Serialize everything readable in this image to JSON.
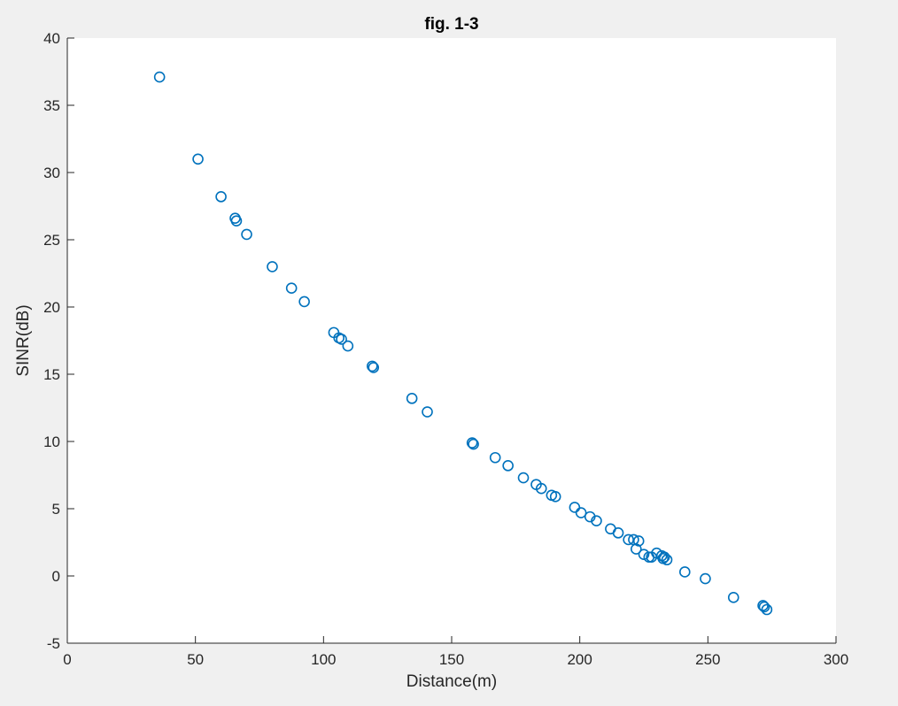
{
  "chart_data": {
    "type": "scatter",
    "title": "fig. 1-3",
    "xlabel": "Distance(m)",
    "ylabel": "SINR(dB)",
    "xlim": [
      0,
      300
    ],
    "ylim": [
      -5,
      40
    ],
    "xticks": [
      0,
      50,
      100,
      150,
      200,
      250,
      300
    ],
    "yticks": [
      -5,
      0,
      5,
      10,
      15,
      20,
      25,
      30,
      35,
      40
    ],
    "grid": false,
    "marker": "circle-open",
    "color": "#0072bd",
    "points": [
      [
        36,
        37.1
      ],
      [
        51,
        31.0
      ],
      [
        60,
        28.2
      ],
      [
        65.5,
        26.6
      ],
      [
        66,
        26.4
      ],
      [
        70,
        25.4
      ],
      [
        80,
        23.0
      ],
      [
        87.5,
        21.4
      ],
      [
        92.5,
        20.4
      ],
      [
        104,
        18.1
      ],
      [
        106,
        17.7
      ],
      [
        107,
        17.6
      ],
      [
        109.5,
        17.1
      ],
      [
        119,
        15.6
      ],
      [
        119.5,
        15.5
      ],
      [
        134.5,
        13.2
      ],
      [
        140.5,
        12.2
      ],
      [
        158,
        9.9
      ],
      [
        158.5,
        9.8
      ],
      [
        167,
        8.8
      ],
      [
        172,
        8.2
      ],
      [
        178,
        7.3
      ],
      [
        183,
        6.8
      ],
      [
        185,
        6.5
      ],
      [
        189,
        6.0
      ],
      [
        190.5,
        5.9
      ],
      [
        198,
        5.1
      ],
      [
        200.5,
        4.7
      ],
      [
        204,
        4.4
      ],
      [
        206.5,
        4.1
      ],
      [
        212,
        3.5
      ],
      [
        215,
        3.2
      ],
      [
        219,
        2.7
      ],
      [
        221,
        2.7
      ],
      [
        223,
        2.6
      ],
      [
        222,
        2.0
      ],
      [
        225,
        1.6
      ],
      [
        227,
        1.4
      ],
      [
        228,
        1.4
      ],
      [
        230,
        1.7
      ],
      [
        232,
        1.5
      ],
      [
        233,
        1.4
      ],
      [
        232.5,
        1.3
      ],
      [
        234,
        1.2
      ],
      [
        241,
        0.3
      ],
      [
        249,
        -0.2
      ],
      [
        260,
        -1.6
      ],
      [
        271.5,
        -2.2
      ],
      [
        272,
        -2.3
      ],
      [
        273,
        -2.5
      ]
    ]
  }
}
